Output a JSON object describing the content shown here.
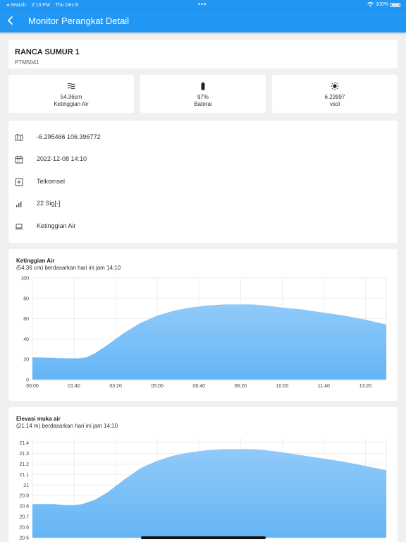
{
  "status_bar": {
    "back_app": "◂ Search",
    "time": "2:13 PM",
    "date": "Thu Dec 8",
    "dots": "•••",
    "battery": "100%"
  },
  "app_bar": {
    "title": "Monitor Perangkat Detail",
    "back_icon": "chevron-left-icon"
  },
  "device": {
    "name": "RANCA SUMUR 1",
    "code": "PTM5041"
  },
  "metrics": [
    {
      "icon": "water-level-icon",
      "value": "54.36cm",
      "label": "Ketinggian Air"
    },
    {
      "icon": "battery-icon",
      "value": "97%",
      "label": "Baterai"
    },
    {
      "icon": "sun-icon",
      "value": "6.23997",
      "label": "vsol"
    }
  ],
  "info": [
    {
      "icon": "map-icon",
      "text": "-6.295466 106.396772"
    },
    {
      "icon": "calendar-icon",
      "text": "2022-12-08 14:10"
    },
    {
      "icon": "plus-box-icon",
      "text": "Telkomsel"
    },
    {
      "icon": "signal-icon",
      "text": "22 Sig[-]"
    },
    {
      "icon": "laptop-icon",
      "text": "Ketinggian Air"
    }
  ],
  "colors": {
    "primary": "#2196f3",
    "chart_fill": "#90caf9",
    "chart_fill_bottom": "#64b5f6"
  },
  "chart_data": [
    {
      "type": "area",
      "title": "Ketinggian Air",
      "subtitle": "(54.36 cm) berdasarkan hari ini jam 14:10",
      "x_ticks": [
        "00:00",
        "01:40",
        "03:20",
        "05:00",
        "06:40",
        "08:20",
        "10:00",
        "11:40",
        "13:20"
      ],
      "y_ticks": [
        0,
        20,
        40,
        60,
        80,
        100
      ],
      "ylim": [
        0,
        100
      ],
      "xlim_minutes": [
        0,
        850
      ],
      "grid": true,
      "x_minutes": [
        0,
        50,
        90,
        110,
        130,
        150,
        180,
        220,
        260,
        300,
        340,
        380,
        420,
        460,
        500,
        530,
        560,
        600,
        650,
        700,
        750,
        800,
        850
      ],
      "values": [
        22,
        21.5,
        21,
        21,
        22,
        26,
        34,
        46,
        56,
        63,
        68,
        71,
        73,
        74,
        74,
        74,
        73,
        71,
        69,
        66,
        63,
        59,
        54.36
      ]
    },
    {
      "type": "area",
      "title": "Elevasi muka air",
      "subtitle": "(21.14 m) berdasarkan hari ini jam 14:10",
      "y_ticks": [
        20.5,
        20.6,
        20.7,
        20.8,
        20.9,
        21,
        21.1,
        21.2,
        21.3,
        21.4
      ],
      "y_tick_labels": [
        "20.5",
        "20.6",
        "20.7",
        "20.8",
        "20.9",
        "21",
        "21.1",
        "21.2",
        "21.3",
        "21.4"
      ],
      "ylim": [
        20.5,
        21.45
      ],
      "xlim_minutes": [
        0,
        850
      ],
      "grid": true,
      "x_minutes": [
        0,
        50,
        80,
        100,
        120,
        150,
        180,
        220,
        260,
        300,
        340,
        380,
        420,
        460,
        500,
        530,
        560,
        600,
        650,
        700,
        750,
        800,
        850
      ],
      "values": [
        20.82,
        20.82,
        20.81,
        20.81,
        20.82,
        20.86,
        20.93,
        21.05,
        21.16,
        21.23,
        21.28,
        21.31,
        21.33,
        21.34,
        21.34,
        21.34,
        21.33,
        21.31,
        21.28,
        21.25,
        21.22,
        21.18,
        21.14
      ]
    }
  ]
}
